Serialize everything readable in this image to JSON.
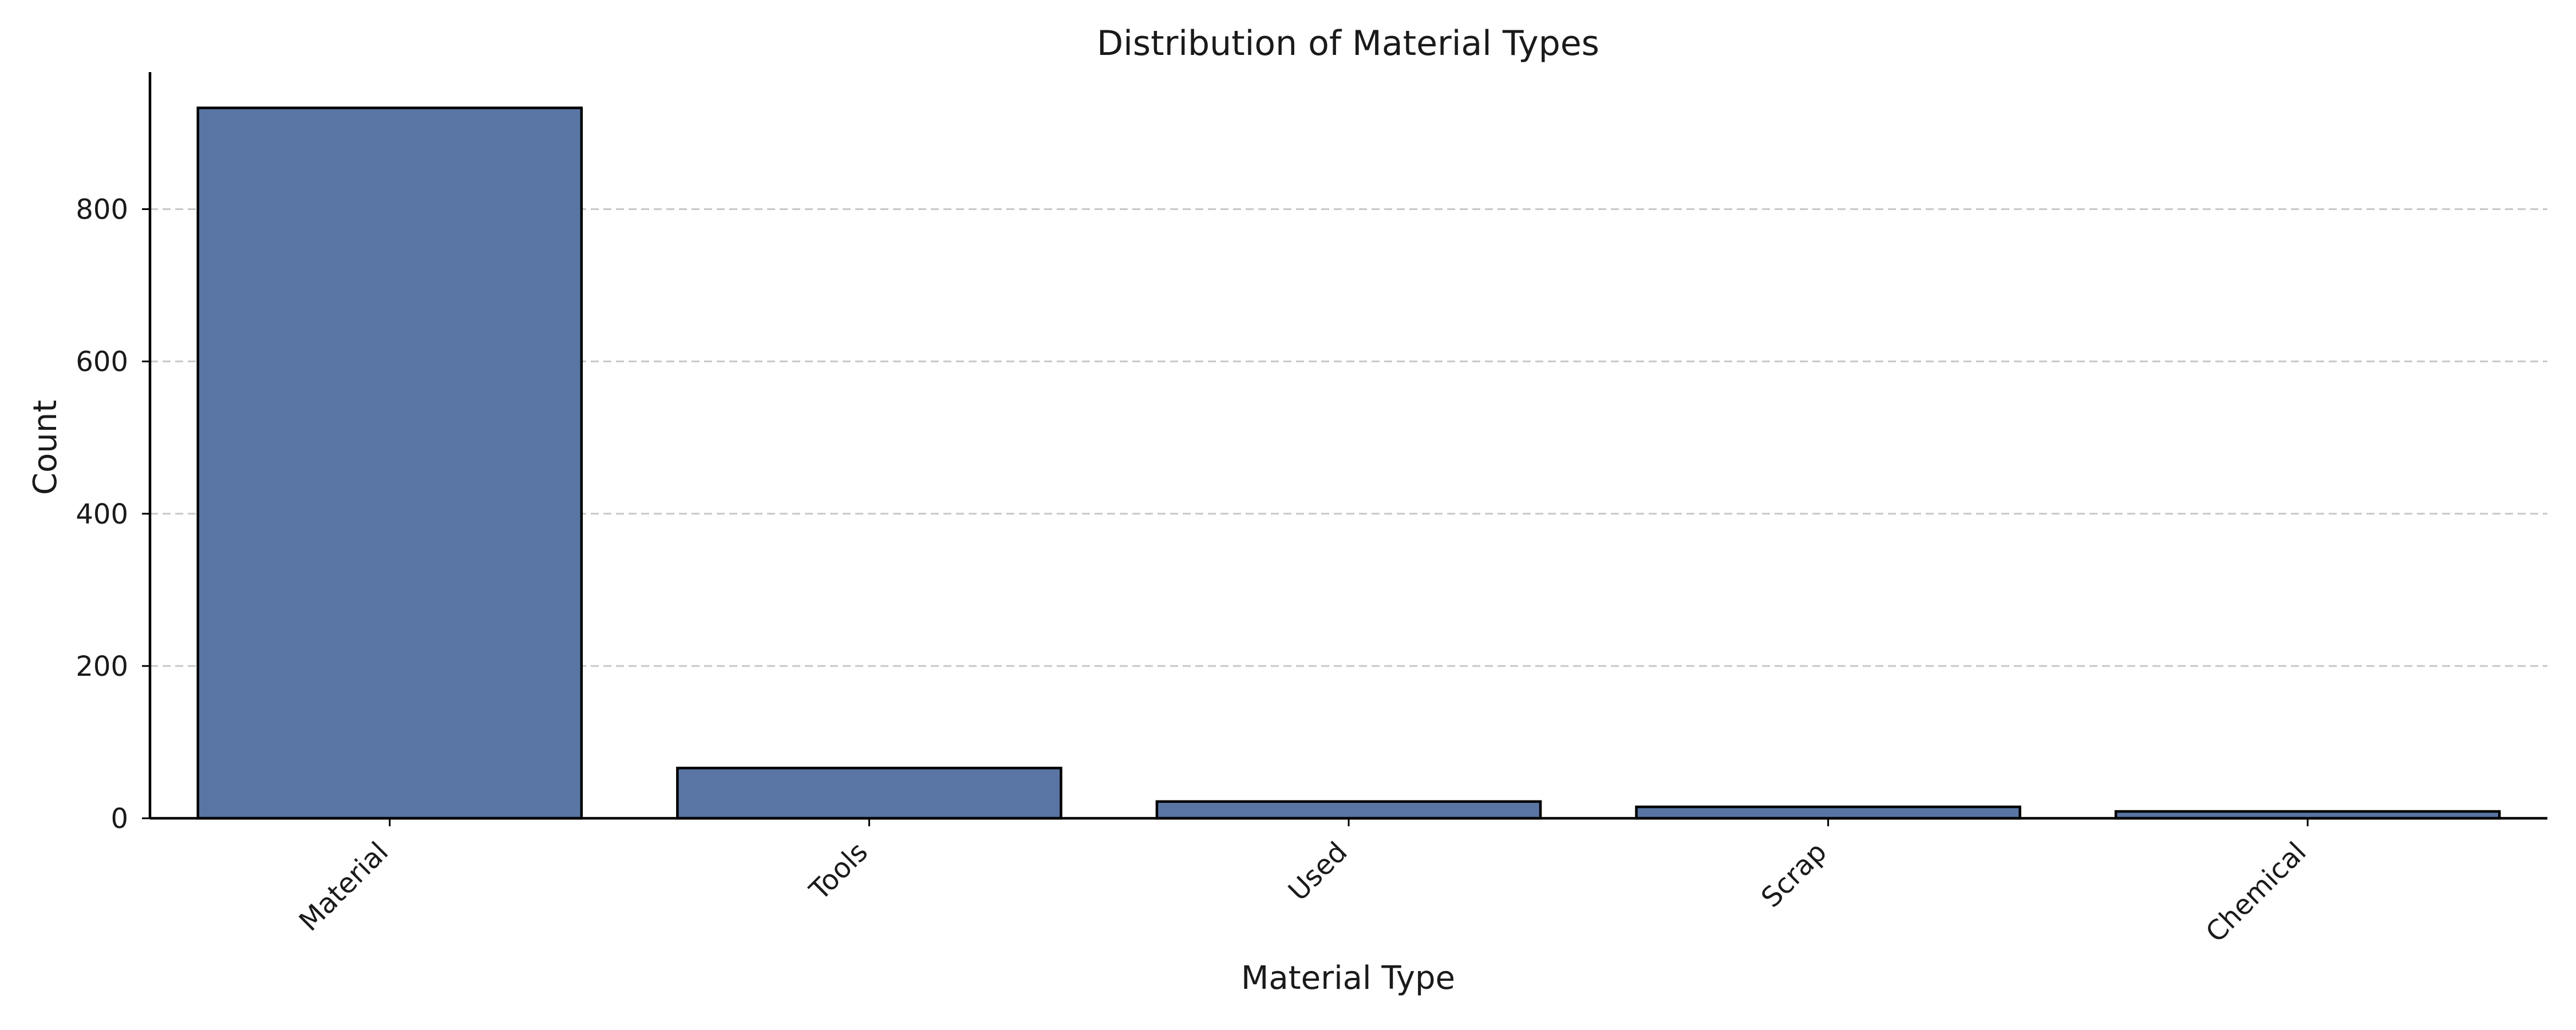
{
  "chart_data": {
    "type": "bar",
    "title": "Distribution of Material Types",
    "xlabel": "Material Type",
    "ylabel": "Count",
    "categories": [
      "Material",
      "Tools",
      "Used",
      "Scrap",
      "Chemical"
    ],
    "values": [
      933,
      66,
      22,
      15,
      9
    ],
    "ylim": [
      0,
      980
    ],
    "yticks": [
      0,
      200,
      400,
      600,
      800
    ],
    "grid": "y-dashed",
    "bar_color": "#5975a4",
    "edge_color": "#000000",
    "xtick_rotation": -45
  }
}
